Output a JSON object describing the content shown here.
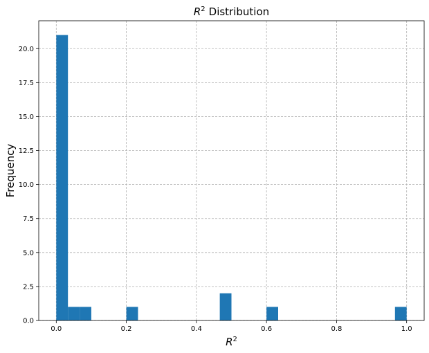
{
  "chart_data": {
    "type": "bar",
    "title": "Distribution",
    "title_math": "R",
    "title_math_sup": "2",
    "xlabel_math": "R",
    "xlabel_math_sup": "2",
    "ylabel": "Frequency",
    "xlim": [
      -0.05,
      1.05
    ],
    "ylim": [
      0,
      22.05
    ],
    "grid": true,
    "bar_color": "#1f77b4",
    "bin_width": 0.0333,
    "bins": [
      {
        "x0": 0.0,
        "count": 21
      },
      {
        "x0": 0.0333,
        "count": 1
      },
      {
        "x0": 0.0667,
        "count": 1
      },
      {
        "x0": 0.2,
        "count": 1
      },
      {
        "x0": 0.4667,
        "count": 2
      },
      {
        "x0": 0.6,
        "count": 1
      },
      {
        "x0": 0.9667,
        "count": 1
      }
    ],
    "xticks": [
      0.0,
      0.2,
      0.4,
      0.6,
      0.8,
      1.0
    ],
    "xtick_labels": [
      "0.0",
      "0.2",
      "0.4",
      "0.6",
      "0.8",
      "1.0"
    ],
    "yticks": [
      0.0,
      2.5,
      5.0,
      7.5,
      10.0,
      12.5,
      15.0,
      17.5,
      20.0
    ],
    "ytick_labels": [
      "0.0",
      "2.5",
      "5.0",
      "7.5",
      "10.0",
      "12.5",
      "15.0",
      "17.5",
      "20.0"
    ]
  }
}
